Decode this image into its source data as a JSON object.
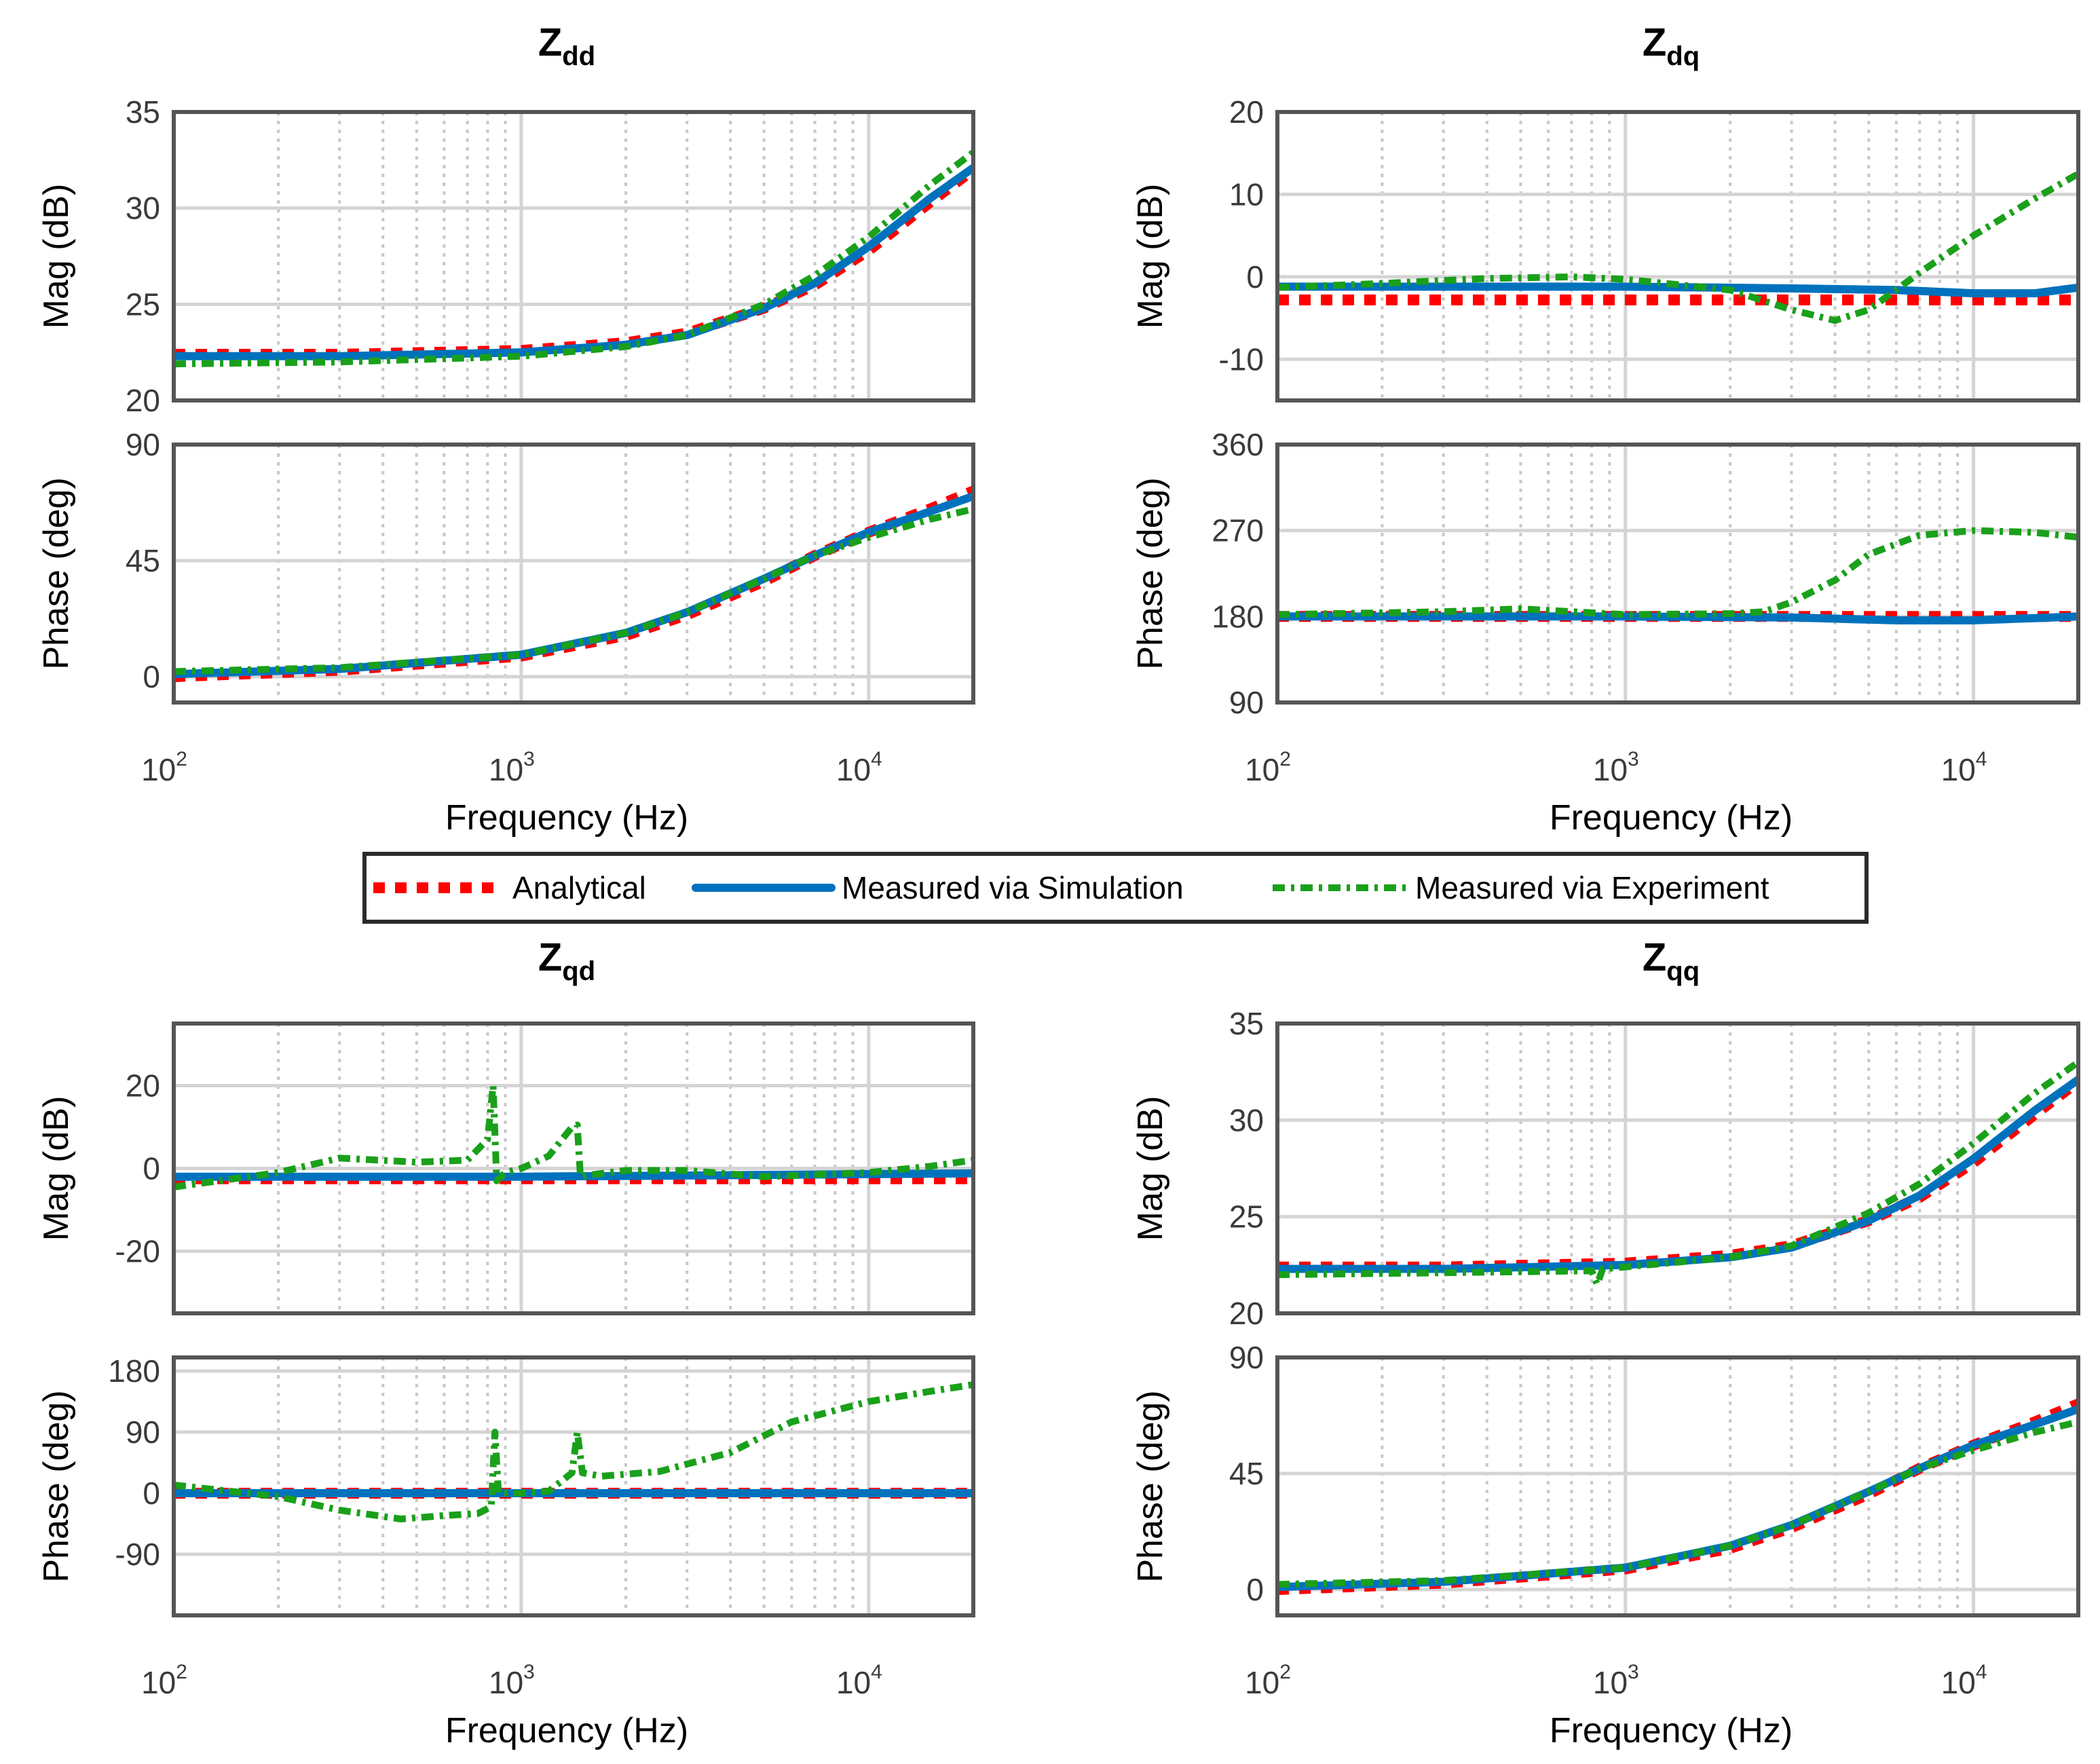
{
  "legend": {
    "entries": [
      {
        "label": "Analytical",
        "color": "#ff0000",
        "style": "dotted-thick"
      },
      {
        "label": "Measured via Simulation",
        "color": "#0072bd",
        "style": "solid"
      },
      {
        "label": "Measured via Experiment",
        "color": "#1aa01a",
        "style": "dash-dot"
      }
    ]
  },
  "chart_data": [
    {
      "id": "zdd",
      "type": "line",
      "title": {
        "main": "Z",
        "sub": "dd"
      },
      "xscale": "log",
      "xlim": [
        100,
        20000
      ],
      "xticks": [
        {
          "base": "10",
          "exp": "2"
        },
        {
          "base": "10",
          "exp": "3"
        },
        {
          "base": "10",
          "exp": "4"
        }
      ],
      "xlabel": "Frequency  (Hz)",
      "panels": [
        {
          "ylabel": "Mag (dB)",
          "ylim": [
            20,
            35
          ],
          "yticks": [
            "20",
            "25",
            "30",
            "35"
          ],
          "series": [
            {
              "name": "Analytical",
              "x": [
                100,
                300,
                1000,
                2000,
                3000,
                5000,
                7000,
                10000,
                15000,
                20000
              ],
              "y": [
                22.4,
                22.4,
                22.6,
                23.0,
                23.5,
                24.8,
                26.0,
                27.8,
                30.3,
                32.0
              ]
            },
            {
              "name": "Measured via Simulation",
              "x": [
                100,
                300,
                1000,
                2000,
                3000,
                5000,
                7000,
                10000,
                15000,
                20000
              ],
              "y": [
                22.3,
                22.3,
                22.5,
                22.9,
                23.4,
                24.8,
                26.1,
                28.0,
                30.5,
                32.1
              ]
            },
            {
              "name": "Measured via Experiment",
              "x": [
                100,
                300,
                1000,
                2000,
                3000,
                5000,
                7000,
                10000,
                15000,
                20000
              ],
              "y": [
                21.9,
                22.0,
                22.3,
                22.8,
                23.4,
                25.0,
                26.5,
                28.5,
                31.2,
                32.9
              ]
            }
          ]
        },
        {
          "ylabel": "Phase (deg)",
          "ylim": [
            -10,
            90
          ],
          "yticks": [
            "0",
            "45",
            "90"
          ],
          "series": [
            {
              "name": "Analytical",
              "x": [
                100,
                300,
                1000,
                2000,
                3000,
                5000,
                7000,
                10000,
                15000,
                20000
              ],
              "y": [
                0,
                2.5,
                8,
                16,
                24,
                37,
                47,
                56,
                65,
                72
              ]
            },
            {
              "name": "Measured via Simulation",
              "x": [
                100,
                300,
                1000,
                2000,
                3000,
                5000,
                7000,
                10000,
                15000,
                20000
              ],
              "y": [
                1,
                3,
                8.5,
                17,
                25,
                38,
                47,
                56,
                64,
                70
              ]
            },
            {
              "name": "Measured via Experiment",
              "x": [
                100,
                300,
                1000,
                2000,
                3000,
                5000,
                7000,
                10000,
                15000,
                20000
              ],
              "y": [
                2,
                3.5,
                8.5,
                17,
                25,
                38,
                47,
                54,
                61,
                65
              ]
            }
          ]
        }
      ]
    },
    {
      "id": "zdq",
      "type": "line",
      "title": {
        "main": "Z",
        "sub": "dq"
      },
      "xscale": "log",
      "xlim": [
        100,
        20000
      ],
      "xticks": [
        {
          "base": "10",
          "exp": "2"
        },
        {
          "base": "10",
          "exp": "3"
        },
        {
          "base": "10",
          "exp": "4"
        }
      ],
      "xlabel": "Frequency  (Hz)",
      "panels": [
        {
          "ylabel": "Mag (dB)",
          "ylim": [
            -15,
            20
          ],
          "yticks": [
            "-10",
            "0",
            "10",
            "20"
          ],
          "series": [
            {
              "name": "Analytical",
              "x": [
                100,
                20000
              ],
              "y": [
                -2.8,
                -2.8
              ]
            },
            {
              "name": "Measured via Simulation",
              "x": [
                100,
                1000,
                3000,
                6000,
                10000,
                15000,
                20000
              ],
              "y": [
                -1.2,
                -1.2,
                -1.4,
                -1.6,
                -2.0,
                -2.0,
                -1.3
              ]
            },
            {
              "name": "Measured via Experiment",
              "x": [
                100,
                200,
                400,
                700,
                1000,
                2000,
                3000,
                4000,
                5000,
                7000,
                10000,
                15000,
                20000
              ],
              "y": [
                -1.3,
                -0.8,
                -0.2,
                0.0,
                -0.3,
                -1.6,
                -4.0,
                -5.3,
                -4.0,
                0.5,
                5.0,
                9.5,
                12.5
              ]
            }
          ]
        },
        {
          "ylabel": "Phase (deg)",
          "ylim": [
            90,
            360
          ],
          "yticks": [
            "90",
            "180",
            "270",
            "360"
          ],
          "series": [
            {
              "name": "Analytical",
              "x": [
                100,
                20000
              ],
              "y": [
                180,
                180
              ]
            },
            {
              "name": "Measured via Simulation",
              "x": [
                100,
                1000,
                3000,
                6000,
                10000,
                20000
              ],
              "y": [
                180,
                180,
                179,
                176,
                176,
                180
              ]
            },
            {
              "name": "Measured via Experiment",
              "x": [
                100,
                300,
                500,
                1000,
                2000,
                2500,
                3000,
                4000,
                5000,
                7000,
                10000,
                15000,
                20000
              ],
              "y": [
                182,
                185,
                188,
                182,
                183,
                185,
                195,
                218,
                245,
                265,
                270,
                268,
                263
              ]
            }
          ]
        }
      ]
    },
    {
      "id": "zqd",
      "type": "line",
      "title": {
        "main": "Z",
        "sub": "qd"
      },
      "xscale": "log",
      "xlim": [
        100,
        20000
      ],
      "xticks": [
        {
          "base": "10",
          "exp": "2"
        },
        {
          "base": "10",
          "exp": "3"
        },
        {
          "base": "10",
          "exp": "4"
        }
      ],
      "xlabel": "Frequency  (Hz)",
      "panels": [
        {
          "ylabel": "Mag (dB)",
          "ylim": [
            -35,
            35
          ],
          "yticks": [
            "-20",
            "0",
            "20"
          ],
          "series": [
            {
              "name": "Analytical",
              "x": [
                100,
                20000
              ],
              "y": [
                -2.5,
                -2.5
              ]
            },
            {
              "name": "Measured via Simulation",
              "x": [
                100,
                1000,
                20000
              ],
              "y": [
                -2.0,
                -2.0,
                -1.2
              ]
            },
            {
              "name": "Measured via Experiment",
              "x": [
                100,
                200,
                300,
                500,
                700,
                800,
                830,
                850,
                900,
                1000,
                1200,
                1400,
                1450,
                1480,
                1600,
                2000,
                3000,
                5000,
                7000,
                10000,
                15000,
                20000
              ],
              "y": [
                -4.5,
                -1.0,
                2.5,
                1.5,
                2.0,
                7.0,
                20.0,
                -3.0,
                -1.0,
                0.0,
                3.0,
                10.0,
                10.5,
                -2.0,
                -1.5,
                -0.5,
                -0.5,
                -2.0,
                -1.5,
                -1.0,
                0.5,
                2.0
              ]
            }
          ]
        },
        {
          "ylabel": "Phase (deg)",
          "ylim": [
            -180,
            200
          ],
          "yticks": [
            "-90",
            "0",
            "90",
            "180"
          ],
          "series": [
            {
              "name": "Analytical",
              "x": [
                100,
                20000
              ],
              "y": [
                0,
                0
              ]
            },
            {
              "name": "Measured via Simulation",
              "x": [
                100,
                1000,
                20000
              ],
              "y": [
                0,
                0,
                0
              ]
            },
            {
              "name": "Measured via Experiment",
              "x": [
                100,
                200,
                300,
                450,
                600,
                750,
                820,
                840,
                860,
                1000,
                1200,
                1400,
                1450,
                1500,
                1700,
                2500,
                4000,
                6000,
                10000,
                15000,
                20000
              ],
              "y": [
                12,
                -5,
                -25,
                -38,
                -33,
                -30,
                -20,
                90,
                0,
                0,
                3,
                30,
                90,
                30,
                25,
                32,
                60,
                105,
                135,
                150,
                160
              ]
            }
          ]
        }
      ]
    },
    {
      "id": "zqq",
      "type": "line",
      "title": {
        "main": "Z",
        "sub": "qq"
      },
      "xscale": "log",
      "xlim": [
        100,
        20000
      ],
      "xticks": [
        {
          "base": "10",
          "exp": "2"
        },
        {
          "base": "10",
          "exp": "3"
        },
        {
          "base": "10",
          "exp": "4"
        }
      ],
      "xlabel": "Frequency  (Hz)",
      "panels": [
        {
          "ylabel": "Mag (dB)",
          "ylim": [
            20,
            35
          ],
          "yticks": [
            "20",
            "25",
            "30",
            "35"
          ],
          "series": [
            {
              "name": "Analytical",
              "x": [
                100,
                300,
                1000,
                2000,
                3000,
                5000,
                7000,
                10000,
                15000,
                20000
              ],
              "y": [
                22.4,
                22.4,
                22.6,
                23.0,
                23.5,
                24.8,
                26.0,
                27.8,
                30.3,
                32.0
              ]
            },
            {
              "name": "Measured via Simulation",
              "x": [
                100,
                300,
                1000,
                2000,
                3000,
                5000,
                7000,
                10000,
                15000,
                20000
              ],
              "y": [
                22.3,
                22.3,
                22.5,
                22.9,
                23.4,
                24.8,
                26.1,
                28.0,
                30.5,
                32.1
              ]
            },
            {
              "name": "Measured via Experiment",
              "x": [
                100,
                300,
                800,
                830,
                860,
                1000,
                2000,
                3000,
                5000,
                7000,
                10000,
                15000,
                20000
              ],
              "y": [
                22.0,
                22.1,
                22.2,
                21.5,
                22.3,
                22.4,
                22.9,
                23.5,
                25.2,
                26.7,
                28.8,
                31.4,
                33.0
              ]
            }
          ]
        },
        {
          "ylabel": "Phase (deg)",
          "ylim": [
            -10,
            90
          ],
          "yticks": [
            "0",
            "45",
            "90"
          ],
          "series": [
            {
              "name": "Analytical",
              "x": [
                100,
                300,
                1000,
                2000,
                3000,
                5000,
                7000,
                10000,
                15000,
                20000
              ],
              "y": [
                0,
                2.5,
                8,
                16,
                24,
                37,
                47,
                56,
                65,
                72
              ]
            },
            {
              "name": "Measured via Simulation",
              "x": [
                100,
                300,
                1000,
                2000,
                3000,
                5000,
                7000,
                10000,
                15000,
                20000
              ],
              "y": [
                1,
                3,
                8.5,
                17,
                25,
                38,
                47,
                56,
                64,
                70
              ]
            },
            {
              "name": "Measured via Experiment",
              "x": [
                100,
                300,
                1000,
                2000,
                3000,
                5000,
                7000,
                10000,
                15000,
                20000
              ],
              "y": [
                2,
                3.5,
                8.5,
                17,
                25,
                38,
                47,
                54,
                61,
                65
              ]
            }
          ]
        }
      ]
    }
  ]
}
